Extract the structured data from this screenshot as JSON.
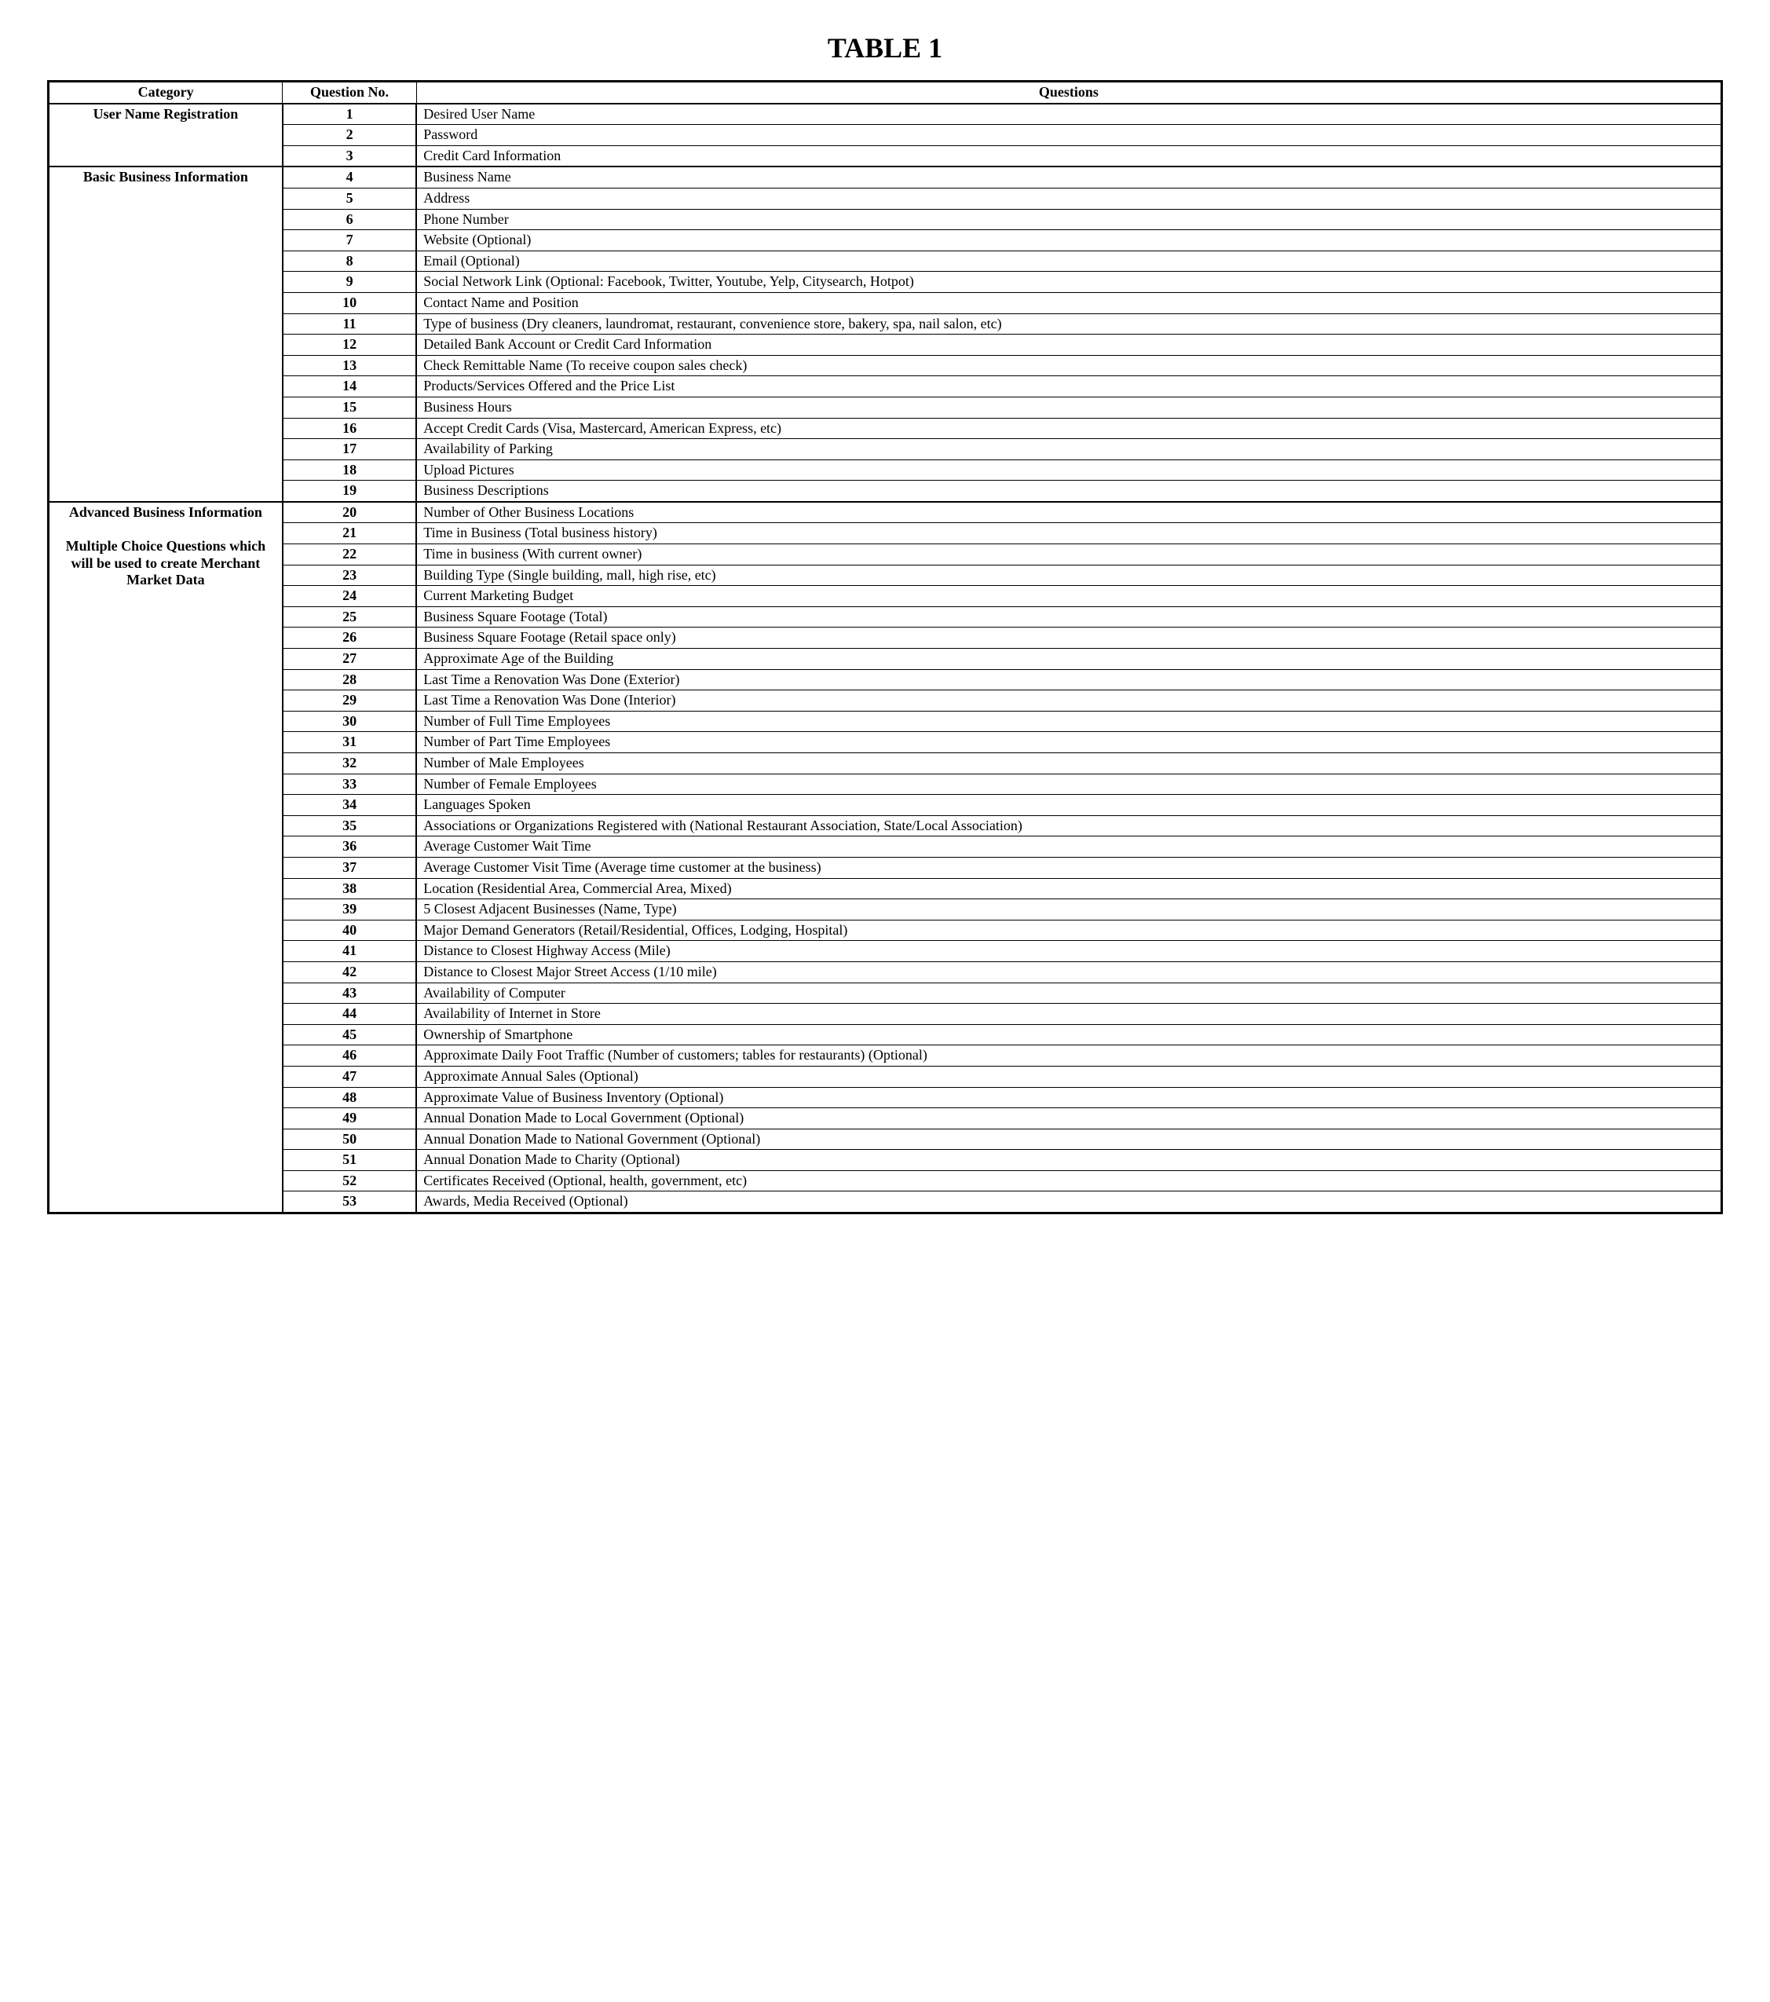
{
  "title": "TABLE 1",
  "headers": {
    "category": "Category",
    "number": "Question No.",
    "questions": "Questions"
  },
  "blocks": [
    {
      "category": "User Name Registration",
      "rows": [
        {
          "n": "1",
          "q": "Desired User Name"
        },
        {
          "n": "2",
          "q": "Password"
        },
        {
          "n": "3",
          "q": "Credit Card Information"
        }
      ]
    },
    {
      "category": "Basic Business Information",
      "rows": [
        {
          "n": "4",
          "q": "Business Name"
        },
        {
          "n": "5",
          "q": "Address"
        },
        {
          "n": "6",
          "q": "Phone Number"
        },
        {
          "n": "7",
          "q": "Website (Optional)"
        },
        {
          "n": "8",
          "q": "Email (Optional)"
        },
        {
          "n": "9",
          "q": "Social Network Link (Optional: Facebook, Twitter, Youtube, Yelp, Citysearch, Hotpot)"
        },
        {
          "n": "10",
          "q": "Contact Name and Position"
        },
        {
          "n": "11",
          "q": "Type of business (Dry cleaners, laundromat, restaurant, convenience store, bakery, spa, nail salon, etc)"
        },
        {
          "n": "12",
          "q": "Detailed Bank Account or Credit Card Information"
        },
        {
          "n": "13",
          "q": "Check Remittable Name (To receive coupon sales check)"
        },
        {
          "n": "14",
          "q": "Products/Services Offered and the Price List"
        },
        {
          "n": "15",
          "q": "Business Hours"
        },
        {
          "n": "16",
          "q": "Accept Credit Cards (Visa, Mastercard, American Express, etc)"
        },
        {
          "n": "17",
          "q": "Availability of Parking"
        },
        {
          "n": "18",
          "q": "Upload Pictures"
        },
        {
          "n": "19",
          "q": "Business Descriptions"
        }
      ]
    },
    {
      "category": "Advanced Business Information\n\nMultiple Choice Questions which will be used to create Merchant Market Data",
      "rows": [
        {
          "n": "20",
          "q": "Number of Other Business Locations"
        },
        {
          "n": "21",
          "q": "Time in Business (Total business history)"
        },
        {
          "n": "22",
          "q": "Time in business (With current owner)"
        },
        {
          "n": "23",
          "q": "Building Type (Single building, mall, high rise, etc)"
        },
        {
          "n": "24",
          "q": "Current Marketing Budget"
        },
        {
          "n": "25",
          "q": "Business Square Footage (Total)"
        },
        {
          "n": "26",
          "q": "Business Square Footage (Retail space only)"
        },
        {
          "n": "27",
          "q": "Approximate Age of the Building"
        },
        {
          "n": "28",
          "q": "Last Time a Renovation Was Done (Exterior)"
        },
        {
          "n": "29",
          "q": "Last Time a Renovation Was Done (Interior)"
        },
        {
          "n": "30",
          "q": "Number of Full Time Employees"
        },
        {
          "n": "31",
          "q": "Number of Part Time Employees"
        },
        {
          "n": "32",
          "q": "Number of Male Employees"
        },
        {
          "n": "33",
          "q": "Number of Female Employees"
        },
        {
          "n": "34",
          "q": "Languages Spoken"
        },
        {
          "n": "35",
          "q": "Associations or Organizations Registered with (National Restaurant Association, State/Local Association)"
        },
        {
          "n": "36",
          "q": "Average Customer Wait Time"
        },
        {
          "n": "37",
          "q": "Average Customer Visit Time (Average time customer at the business)"
        },
        {
          "n": "38",
          "q": "Location (Residential Area, Commercial Area, Mixed)"
        },
        {
          "n": "39",
          "q": "5 Closest Adjacent Businesses (Name, Type)"
        },
        {
          "n": "40",
          "q": "Major Demand Generators (Retail/Residential, Offices, Lodging, Hospital)"
        },
        {
          "n": "41",
          "q": "Distance to Closest Highway Access (Mile)"
        },
        {
          "n": "42",
          "q": "Distance to Closest Major Street Access (1/10 mile)"
        },
        {
          "n": "43",
          "q": "Availability of Computer"
        },
        {
          "n": "44",
          "q": "Availability of Internet in Store"
        },
        {
          "n": "45",
          "q": "Ownership of Smartphone"
        },
        {
          "n": "46",
          "q": "Approximate Daily Foot Traffic (Number of customers; tables for restaurants) (Optional)"
        },
        {
          "n": "47",
          "q": "Approximate Annual Sales (Optional)"
        },
        {
          "n": "48",
          "q": "Approximate Value of Business Inventory (Optional)"
        },
        {
          "n": "49",
          "q": "Annual Donation Made to Local Government (Optional)"
        },
        {
          "n": "50",
          "q": "Annual Donation Made to National Government  (Optional)"
        },
        {
          "n": "51",
          "q": "Annual Donation Made to Charity (Optional)"
        },
        {
          "n": "52",
          "q": "Certificates Received (Optional, health, government, etc)"
        },
        {
          "n": "53",
          "q": "Awards, Media Received (Optional)"
        }
      ]
    }
  ]
}
